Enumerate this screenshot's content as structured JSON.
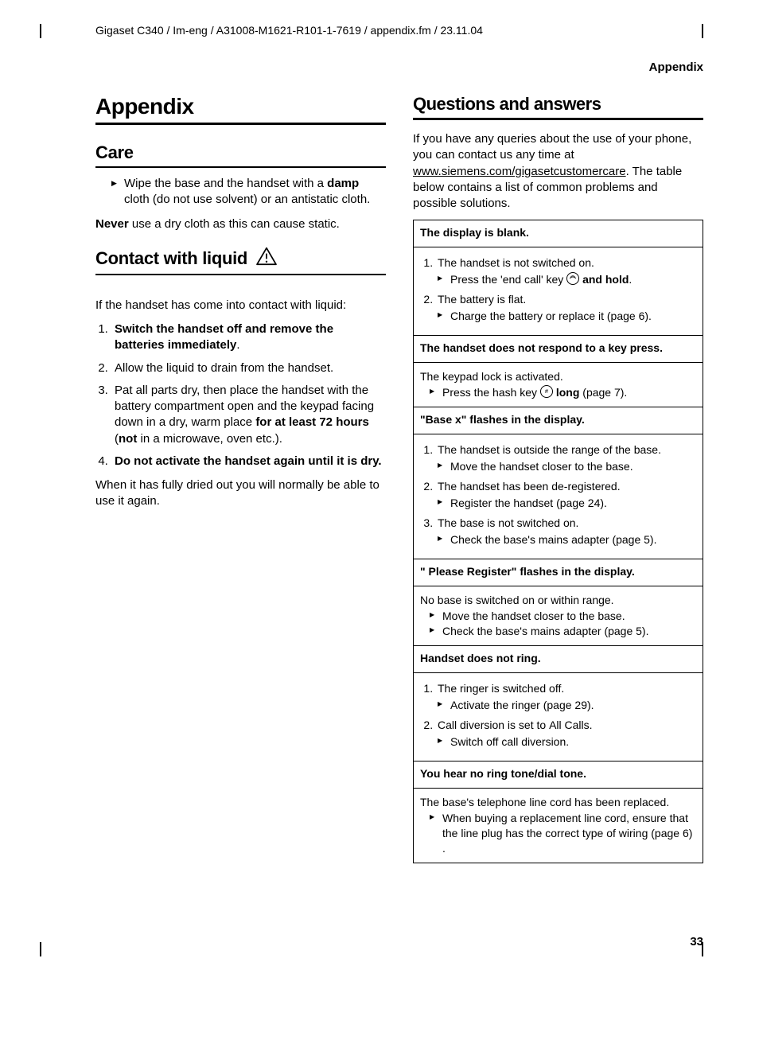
{
  "header_path": "Gigaset C340 / Im-eng / A31008-M1621-R101-1-7619 / appendix.fm / 23.11.04",
  "corner_label": "Appendix",
  "page_number": "33",
  "left": {
    "chapter": "Appendix",
    "care_heading": "Care",
    "care_bullet": "Wipe the base and the handset with a <b>damp</b> cloth (do not use solvent) or an antistatic cloth.",
    "care_para": "<b>Never</b> use a dry cloth as this can cause static.",
    "liquid_heading": "Contact with liquid",
    "liquid_intro": "If the handset has come into contact with liquid:",
    "liquid_steps": [
      "<b>Switch the handset off and remove the batteries immediately</b>.",
      "Allow the liquid to drain from the hand­set.",
      "Pat all parts dry, then place the handset with the battery compartment open and the keypad facing down in a dry, warm place <b>for at least 72 hours</b> (<b>not</b> in a microwave, oven etc.).",
      "<b>Do not activate the handset again until it is dry.</b>"
    ],
    "liquid_outro": "When it has fully dried out you will nor­mally be able to use it again."
  },
  "right": {
    "qa_heading": "Questions and answers",
    "qa_intro": "If you have any queries about the use of your phone, you can contact us any time at <span class=\"underline\">www.siemens.com/gigasetcustomer­care</span>. The table below contains a list of common problems and possible solutions.",
    "rows": [
      {
        "head": "<b>The display is blank.</b>",
        "body": "<ol><li>The handset is not switched on.<ul class=\"arrow-sub\"><li>Press the 'end call' key <span class=\"keycap keycap-end\"><svg viewBox=\"0 0 16 16\" width=\"12\" height=\"12\"><path d=\"M3 9 Q8 4 13 9\" stroke=\"#000\" stroke-width=\"1.2\" fill=\"none\"/><path d=\"M4.5 6.5 Q8 3 11.5 6.5\" stroke=\"#000\" stroke-width=\"0.9\" fill=\"none\"/></svg></span> <b>and hold</b>.</li></ul></li><li>The battery is flat.<ul class=\"arrow-sub\"><li>Charge the battery or replace it (page 6).</li></ul></li></ol>"
      },
      {
        "head": "<b>The handset does not respond to a key press.</b>",
        "body": "<div class=\"qa-body-plain\">The keypad lock is activated.</div><ul class=\"arrow-sub\"><li>Press the hash key <span class=\"keycap keycap-hash\"><svg viewBox=\"0 0 16 16\" width=\"12\" height=\"12\"><text x=\"8\" y=\"12\" text-anchor=\"middle\" font-size=\"10\" font-family=\"Arial\">#</text></svg></span> <b>long</b> (page 7).</li></ul>"
      },
      {
        "head": "<b>\"Base x\"</b> flashes <b>in the display.</b>",
        "body": "<ol><li>The handset is outside the range of the base.<ul class=\"arrow-sub\"><li>Move the handset closer to the base.</li></ul></li><li>The handset has been de-registered.<ul class=\"arrow-sub\"><li>Register the handset (page 24).</li></ul></li><li>The base is not switched on.<ul class=\"arrow-sub\"><li>Check the base's mains adapter (page 5).</li></ul></li></ol>"
      },
      {
        "head": "<b>\" Please Register\" flashes in the display.</b>",
        "body": "<div class=\"qa-body-plain\">No base is switched on or within range.</div><ul class=\"arrow-sub\"><li>Move the handset closer to the base.</li><li>Check the base's mains adapter (page 5).</li></ul>"
      },
      {
        "head": "<b>Handset does not ring.</b>",
        "body": "<ol><li>The ringer is switched off.<ul class=\"arrow-sub\"><li>Activate the ringer (page 29).</li></ul></li><li>Call diversion is set to <span class=\"alt-font\">All Calls</span>.<ul class=\"arrow-sub\"><li>Switch off call diversion.</li></ul></li></ol>"
      },
      {
        "head": "<b>You hear no ring tone/dial tone.</b>",
        "body": "<div class=\"qa-body-plain\">The base's telephone line cord has been replaced.</div><ul class=\"arrow-sub\"><li>When buying a replacement line cord, ensure that the line plug has the correct type of wiring (page 6) .</li></ul>"
      }
    ]
  }
}
